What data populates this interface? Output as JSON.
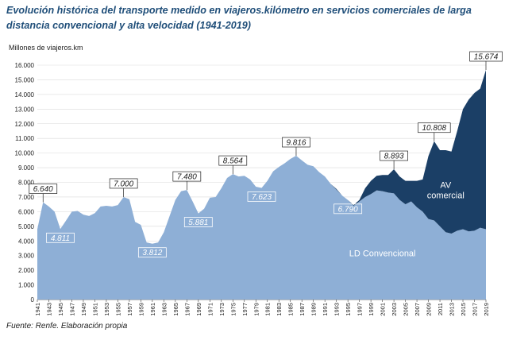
{
  "title": "Evolución histórica del transporte medido en viajeros.kilómetro en servicios comerciales de larga distancia convencional y alta velocidad (1941-2019)",
  "source": "Fuente: Renfe. Elaboración propia",
  "colors": {
    "ld": "#8eafd6",
    "av": "#1b3f66",
    "title": "#1f4e79"
  },
  "chart_data": {
    "type": "area",
    "stacked": true,
    "ylabel": "Millones de viajeros.km",
    "ylim": [
      0,
      16000
    ],
    "yticks": [
      "0",
      "1.000",
      "2.000",
      "3.000",
      "4.000",
      "5.000",
      "6.000",
      "7.000",
      "8.000",
      "9.000",
      "10.000",
      "11.000",
      "12.000",
      "13.000",
      "14.000",
      "15.000",
      "16.000"
    ],
    "x": [
      1941,
      1942,
      1943,
      1944,
      1945,
      1946,
      1947,
      1948,
      1949,
      1950,
      1951,
      1952,
      1953,
      1954,
      1955,
      1956,
      1957,
      1958,
      1959,
      1960,
      1961,
      1962,
      1963,
      1964,
      1965,
      1966,
      1967,
      1968,
      1969,
      1970,
      1971,
      1972,
      1973,
      1974,
      1975,
      1976,
      1977,
      1978,
      1979,
      1980,
      1981,
      1982,
      1983,
      1984,
      1985,
      1986,
      1987,
      1988,
      1989,
      1990,
      1991,
      1992,
      1993,
      1994,
      1995,
      1996,
      1997,
      1998,
      1999,
      2000,
      2001,
      2002,
      2003,
      2004,
      2005,
      2006,
      2007,
      2008,
      2009,
      2010,
      2011,
      2012,
      2013,
      2014,
      2015,
      2016,
      2017,
      2018,
      2019
    ],
    "xticks": [
      "1941",
      "1943",
      "1945",
      "1947",
      "1949",
      "1951",
      "1953",
      "1955",
      "1957",
      "1959",
      "1961",
      "1963",
      "1965",
      "1967",
      "1969",
      "1971",
      "1973",
      "1975",
      "1977",
      "1979",
      "1981",
      "1983",
      "1985",
      "1987",
      "1989",
      "1991",
      "1993",
      "1995",
      "1997",
      "1999",
      "2001",
      "2003",
      "2005",
      "2007",
      "2009",
      "2011",
      "2013",
      "2015",
      "2017",
      "2019"
    ],
    "series": [
      {
        "name": "LD Convencional",
        "values": [
          4800,
          6640,
          6350,
          6000,
          4811,
          5400,
          6000,
          6050,
          5800,
          5700,
          5900,
          6350,
          6400,
          6350,
          6450,
          7000,
          6850,
          5300,
          5100,
          3900,
          3812,
          3900,
          4600,
          5700,
          6800,
          7400,
          7480,
          6700,
          5881,
          6200,
          6950,
          7000,
          7600,
          8300,
          8564,
          8400,
          8450,
          8200,
          7700,
          7623,
          8100,
          8750,
          9050,
          9300,
          9600,
          9816,
          9500,
          9200,
          9100,
          8700,
          8400,
          7900,
          7500,
          7100,
          6790,
          6400,
          6700,
          7000,
          7200,
          7450,
          7400,
          7300,
          7250,
          6800,
          6500,
          6700,
          6300,
          6000,
          5500,
          5400,
          5000,
          4600,
          4500,
          4700,
          4800,
          4650,
          4700,
          4900,
          4800
        ]
      },
      {
        "name": "AV comercial",
        "values": [
          0,
          0,
          0,
          0,
          0,
          0,
          0,
          0,
          0,
          0,
          0,
          0,
          0,
          0,
          0,
          0,
          0,
          0,
          0,
          0,
          0,
          0,
          0,
          0,
          0,
          0,
          0,
          0,
          0,
          0,
          0,
          0,
          0,
          0,
          0,
          0,
          0,
          0,
          0,
          0,
          0,
          0,
          0,
          0,
          0,
          0,
          0,
          0,
          0,
          0,
          0,
          0,
          50,
          0,
          0,
          50,
          100,
          600,
          900,
          1000,
          1100,
          1200,
          1643,
          1600,
          1600,
          1400,
          1800,
          2200,
          4300,
          5408,
          5200,
          5600,
          5600,
          6800,
          8200,
          9000,
          9400,
          9500,
          10874
        ]
      }
    ],
    "annotations": [
      {
        "x": 1942,
        "label": "6.640",
        "style": "box"
      },
      {
        "x": 1945,
        "label": "4.811",
        "style": "italic"
      },
      {
        "x": 1956,
        "label": "7.000",
        "style": "box"
      },
      {
        "x": 1961,
        "label": "3.812",
        "style": "italic"
      },
      {
        "x": 1967,
        "label": "7.480",
        "style": "box"
      },
      {
        "x": 1969,
        "label": "5.881",
        "style": "italic"
      },
      {
        "x": 1975,
        "label": "8.564",
        "style": "box"
      },
      {
        "x": 1980,
        "label": "7.623",
        "style": "italic"
      },
      {
        "x": 1986,
        "label": "9.816",
        "style": "box"
      },
      {
        "x": 1995,
        "label": "6.790",
        "style": "italic"
      },
      {
        "x": 2003,
        "label": "8.893",
        "style": "box"
      },
      {
        "x": 2010,
        "label": "10.808",
        "style": "box"
      },
      {
        "x": 2019,
        "label": "15.674",
        "style": "box"
      }
    ],
    "area_labels": [
      {
        "series": "AV comercial",
        "lines": [
          "AV",
          "comercial"
        ]
      },
      {
        "series": "LD Convencional",
        "lines": [
          "LD Convencional"
        ]
      }
    ],
    "grid": true,
    "legend": "none"
  }
}
